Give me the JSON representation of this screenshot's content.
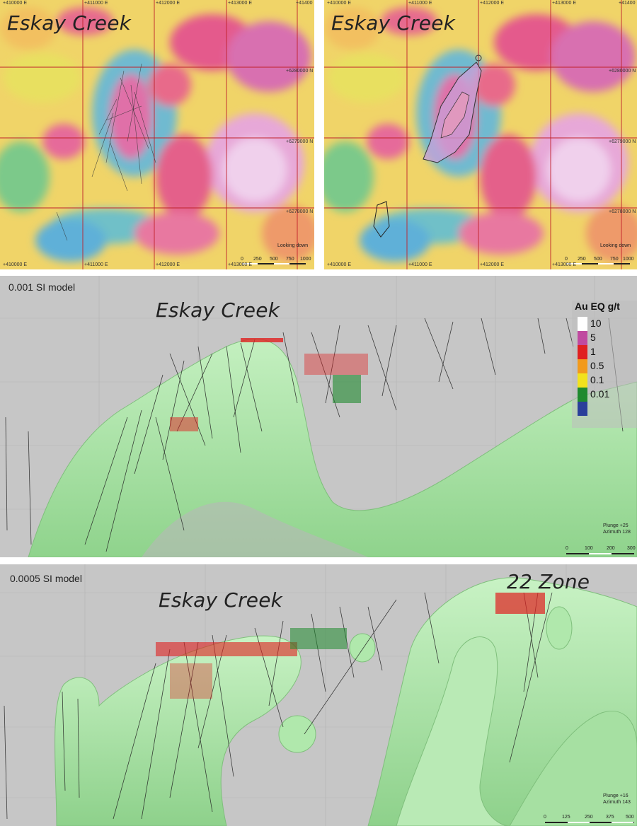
{
  "maps": [
    {
      "title": "Eskay Creek",
      "top_labels": [
        "+410000 E",
        "+411000 E",
        "+412000 E",
        "+413000 E",
        "+41400"
      ],
      "bottom_labels": [
        "+410000 E",
        "+411000 E",
        "+412000 E",
        "+413000 E",
        "+41400"
      ],
      "right_labels": [
        "+6280000 N",
        "+6279000 N",
        "+6278000 N"
      ],
      "view_label": "Looking down",
      "scale_ticks": [
        "0",
        "250",
        "500",
        "750",
        "1000"
      ]
    },
    {
      "title": "Eskay Creek",
      "top_labels": [
        "+410000 E",
        "+411000 E",
        "+412000 E",
        "+413000 E",
        "+41400"
      ],
      "bottom_labels": [
        "+410000 E",
        "+411000 E",
        "+412000 E",
        "+413000 E",
        "+41400"
      ],
      "right_labels": [
        "+6280000 N",
        "+6279000 N",
        "+6278000 N"
      ],
      "view_label": "Looking down",
      "scale_ticks": [
        "0",
        "250",
        "500",
        "750",
        "1000"
      ]
    }
  ],
  "model1": {
    "label": "0.001 SI model",
    "title": "Eskay Creek",
    "plunge": "Plunge +25",
    "azimuth": "Azimuth 128",
    "scale_ticks": [
      "0",
      "100",
      "200",
      "300"
    ]
  },
  "model2": {
    "label": "0.0005 SI model",
    "title": "Eskay Creek",
    "zone_label": "22 Zone",
    "plunge": "Plunge +16",
    "azimuth": "Azimuth 143",
    "scale_ticks": [
      "0",
      "125",
      "250",
      "375",
      "500"
    ]
  },
  "legend": {
    "title": "Au EQ g/t",
    "items": [
      {
        "label": "10",
        "color": "#ffffff"
      },
      {
        "label": "5",
        "color": "#c04aa0"
      },
      {
        "label": "1",
        "color": "#e02020"
      },
      {
        "label": "0.5",
        "color": "#f29a1c"
      },
      {
        "label": "0.1",
        "color": "#f2e21c"
      },
      {
        "label": "0.01",
        "color": "#1f8a2e"
      },
      {
        "label": "",
        "color": "#2a3f9a"
      }
    ]
  },
  "colors": {
    "grid_red": "#c0202a",
    "surface_green": "#9ddf9a",
    "background_grey": "#c6c6c6"
  }
}
